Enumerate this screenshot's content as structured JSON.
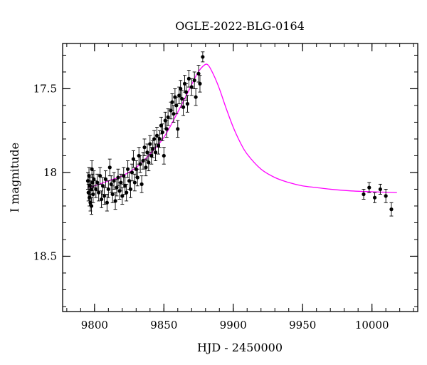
{
  "chart_data": {
    "type": "scatter",
    "title": "OGLE-2022-BLG-0164",
    "xlabel": "HJD - 2450000",
    "ylabel": "I magnitude",
    "xlim": [
      9777,
      10033
    ],
    "ylim": [
      18.83,
      17.23
    ],
    "y_inverted": true,
    "grid": false,
    "xticks": [
      9800,
      9850,
      9900,
      9950,
      10000
    ],
    "yticks": [
      17.5,
      18,
      18.5
    ],
    "x_minor_step": 10,
    "y_minor_step": 0.1,
    "model_color": "#ff00ff",
    "point_color": "#000000",
    "model": {
      "name": "",
      "points": [
        [
          9795,
          18.09
        ],
        [
          9800,
          18.08
        ],
        [
          9810,
          18.05
        ],
        [
          9820,
          18.02
        ],
        [
          9830,
          17.97
        ],
        [
          9840,
          17.89
        ],
        [
          9850,
          17.79
        ],
        [
          9860,
          17.64
        ],
        [
          9868,
          17.51
        ],
        [
          9874,
          17.41
        ],
        [
          9879,
          17.36
        ],
        [
          9882,
          17.36
        ],
        [
          9886,
          17.42
        ],
        [
          9890,
          17.5
        ],
        [
          9895,
          17.62
        ],
        [
          9900,
          17.73
        ],
        [
          9905,
          17.82
        ],
        [
          9910,
          17.89
        ],
        [
          9920,
          17.98
        ],
        [
          9930,
          18.03
        ],
        [
          9940,
          18.06
        ],
        [
          9950,
          18.08
        ],
        [
          9960,
          18.09
        ],
        [
          9970,
          18.1
        ],
        [
          9985,
          18.11
        ],
        [
          10000,
          18.115
        ],
        [
          10018,
          18.12
        ]
      ]
    },
    "series": [
      {
        "name": "",
        "points": [
          [
            9795.2,
            18.05,
            0.05
          ],
          [
            9795.6,
            18.12,
            0.05
          ],
          [
            9796.0,
            18.02,
            0.05
          ],
          [
            9796.3,
            18.15,
            0.05
          ],
          [
            9796.7,
            18.08,
            0.05
          ],
          [
            9797.0,
            18.18,
            0.05
          ],
          [
            9797.4,
            18.1,
            0.05
          ],
          [
            9797.8,
            18.2,
            0.05
          ],
          [
            9798.1,
            17.98,
            0.05
          ],
          [
            9798.5,
            18.06,
            0.05
          ],
          [
            9799.0,
            18.13,
            0.05
          ],
          [
            9799.5,
            18.04,
            0.05
          ],
          [
            9801.0,
            18.1,
            0.05
          ],
          [
            9802.0,
            18.06,
            0.05
          ],
          [
            9803.0,
            18.12,
            0.05
          ],
          [
            9804.0,
            18.02,
            0.05
          ],
          [
            9805.0,
            18.16,
            0.05
          ],
          [
            9806.0,
            18.08,
            0.05
          ],
          [
            9807.0,
            18.14,
            0.05
          ],
          [
            9808.0,
            18.04,
            0.05
          ],
          [
            9809.0,
            18.18,
            0.05
          ],
          [
            9810.0,
            18.1,
            0.05
          ],
          [
            9811.0,
            17.97,
            0.05
          ],
          [
            9812.0,
            18.07,
            0.05
          ],
          [
            9813.0,
            18.13,
            0.05
          ],
          [
            9814.0,
            18.05,
            0.05
          ],
          [
            9815.0,
            18.17,
            0.05
          ],
          [
            9816.0,
            18.09,
            0.05
          ],
          [
            9817.0,
            18.03,
            0.05
          ],
          [
            9818.0,
            18.11,
            0.05
          ],
          [
            9819.0,
            18.06,
            0.05
          ],
          [
            9820.0,
            18.14,
            0.05
          ],
          [
            9821.0,
            18.02,
            0.05
          ],
          [
            9822.0,
            18.08,
            0.05
          ],
          [
            9823.0,
            18.12,
            0.05
          ],
          [
            9824.0,
            17.98,
            0.05
          ],
          [
            9825.0,
            18.05,
            0.05
          ],
          [
            9826.0,
            18.1,
            0.05
          ],
          [
            9827.0,
            18.0,
            0.05
          ],
          [
            9828.0,
            17.92,
            0.05
          ],
          [
            9829.0,
            18.06,
            0.05
          ],
          [
            9830.0,
            17.98,
            0.05
          ],
          [
            9831.0,
            18.03,
            0.05
          ],
          [
            9832.0,
            17.9,
            0.05
          ],
          [
            9833.0,
            17.95,
            0.05
          ],
          [
            9834.0,
            18.07,
            0.05
          ],
          [
            9835.0,
            17.93,
            0.05
          ],
          [
            9836.0,
            17.85,
            0.05
          ],
          [
            9837.0,
            17.97,
            0.05
          ],
          [
            9838.0,
            17.88,
            0.05
          ],
          [
            9839.0,
            17.94,
            0.05
          ],
          [
            9840.0,
            17.83,
            0.05
          ],
          [
            9841.0,
            17.9,
            0.05
          ],
          [
            9842.0,
            17.86,
            0.05
          ],
          [
            9843.0,
            17.8,
            0.05
          ],
          [
            9844.0,
            17.88,
            0.05
          ],
          [
            9845.0,
            17.78,
            0.05
          ],
          [
            9846.0,
            17.84,
            0.05
          ],
          [
            9847.0,
            17.8,
            0.05
          ],
          [
            9848.0,
            17.72,
            0.05
          ],
          [
            9849.0,
            17.76,
            0.05
          ],
          [
            9850.0,
            17.9,
            0.05
          ],
          [
            9851.0,
            17.69,
            0.05
          ],
          [
            9852.0,
            17.74,
            0.05
          ],
          [
            9853.0,
            17.67,
            0.05
          ],
          [
            9855.0,
            17.63,
            0.05
          ],
          [
            9856.0,
            17.58,
            0.05
          ],
          [
            9857.0,
            17.65,
            0.05
          ],
          [
            9858.0,
            17.55,
            0.05
          ],
          [
            9859.0,
            17.6,
            0.05
          ],
          [
            9860.0,
            17.74,
            0.05
          ],
          [
            9861.0,
            17.54,
            0.05
          ],
          [
            9862.0,
            17.5,
            0.05
          ],
          [
            9863.0,
            17.56,
            0.05
          ],
          [
            9864.0,
            17.61,
            0.05
          ],
          [
            9865.0,
            17.47,
            0.05
          ],
          [
            9866.0,
            17.52,
            0.05
          ],
          [
            9867.0,
            17.59,
            0.05
          ],
          [
            9868.0,
            17.44,
            0.05
          ],
          [
            9870.0,
            17.49,
            0.05
          ],
          [
            9872.0,
            17.45,
            0.05
          ],
          [
            9873.0,
            17.55,
            0.05
          ],
          [
            9875.0,
            17.41,
            0.05
          ],
          [
            9876.0,
            17.47,
            0.05
          ],
          [
            9878.0,
            17.31,
            0.03
          ],
          [
            9994.0,
            18.13,
            0.03
          ],
          [
            9998.0,
            18.09,
            0.03
          ],
          [
            10002.0,
            18.15,
            0.03
          ],
          [
            10006.0,
            18.1,
            0.03
          ],
          [
            10010.0,
            18.14,
            0.04
          ],
          [
            10014.0,
            18.22,
            0.04
          ]
        ]
      }
    ]
  }
}
